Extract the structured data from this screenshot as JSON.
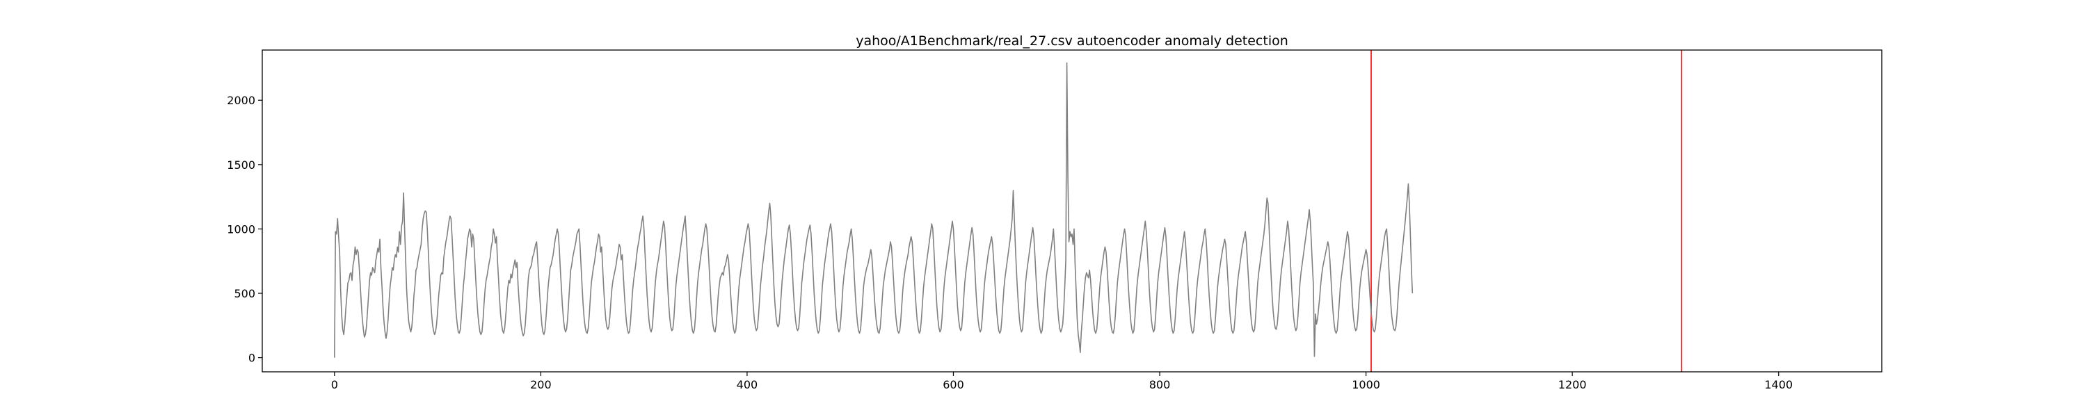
{
  "chart_data": {
    "type": "line",
    "title": "yahoo/A1Benchmark/real_27.csv autoencoder anomaly detection",
    "xlabel": "",
    "ylabel": "",
    "xlim": [
      -70,
      1500
    ],
    "ylim": [
      -110,
      2390
    ],
    "x_ticks": [
      0,
      200,
      400,
      600,
      800,
      1000,
      1200,
      1400
    ],
    "y_ticks": [
      0,
      500,
      1000,
      1500,
      2000
    ],
    "grid": false,
    "series": [
      {
        "color": "#808080",
        "values": [
          0,
          980,
          960,
          1080,
          940,
          820,
          520,
          330,
          220,
          180,
          260,
          380,
          480,
          580,
          600,
          650,
          660,
          600,
          720,
          760,
          860,
          800,
          840,
          820,
          700,
          560,
          420,
          300,
          220,
          160,
          180,
          240,
          360,
          480,
          600,
          660,
          640,
          700,
          680,
          660,
          750,
          800,
          850,
          820,
          920,
          700,
          560,
          400,
          280,
          200,
          150,
          200,
          300,
          440,
          560,
          620,
          700,
          680,
          760,
          800,
          780,
          860,
          820,
          980,
          880,
          1020,
          1060,
          1280,
          1000,
          760,
          520,
          380,
          280,
          230,
          200,
          240,
          340,
          480,
          560,
          680,
          700,
          760,
          800,
          840,
          880,
          1000,
          1080,
          1120,
          1140,
          1130,
          1000,
          820,
          640,
          480,
          360,
          260,
          210,
          180,
          200,
          260,
          360,
          480,
          560,
          640,
          660,
          650,
          780,
          840,
          900,
          940,
          1000,
          1060,
          1100,
          1080,
          940,
          780,
          620,
          460,
          340,
          260,
          200,
          190,
          220,
          320,
          440,
          560,
          640,
          740,
          820,
          920,
          960,
          1000,
          980,
          860,
          960,
          920,
          760,
          600,
          460,
          340,
          260,
          200,
          180,
          200,
          290,
          420,
          530,
          600,
          640,
          690,
          740,
          780,
          860,
          900,
          1000,
          960,
          890,
          940,
          760,
          620,
          460,
          340,
          260,
          210,
          190,
          230,
          320,
          430,
          540,
          600,
          580,
          650,
          620,
          680,
          720,
          760,
          700,
          740,
          560,
          440,
          330,
          250,
          200,
          170,
          190,
          260,
          380,
          500,
          620,
          680,
          700,
          720,
          780,
          800,
          840,
          880,
          900,
          760,
          620,
          480,
          360,
          260,
          200,
          180,
          210,
          300,
          420,
          540,
          620,
          700,
          720,
          760,
          800,
          860,
          920,
          960,
          1000,
          960,
          840,
          680,
          540,
          400,
          300,
          230,
          200,
          220,
          300,
          430,
          560,
          680,
          720,
          780,
          820,
          860,
          900,
          960,
          980,
          1000,
          880,
          720,
          560,
          420,
          310,
          240,
          200,
          190,
          230,
          330,
          460,
          580,
          640,
          700,
          740,
          800,
          860,
          900,
          960,
          940,
          820,
          860,
          700,
          540,
          400,
          300,
          240,
          220,
          240,
          320,
          440,
          540,
          600,
          640,
          680,
          720,
          780,
          820,
          880,
          860,
          760,
          800,
          640,
          500,
          380,
          280,
          220,
          190,
          200,
          280,
          400,
          520,
          600,
          660,
          720,
          800,
          860,
          900,
          960,
          1000,
          1060,
          1100,
          1000,
          820,
          660,
          500,
          380,
          280,
          220,
          200,
          230,
          330,
          460,
          580,
          660,
          720,
          760,
          820,
          880,
          940,
          1000,
          1060,
          1020,
          880,
          720,
          560,
          420,
          310,
          240,
          210,
          220,
          300,
          430,
          560,
          640,
          700,
          760,
          820,
          880,
          940,
          1000,
          1050,
          1100,
          960,
          800,
          640,
          480,
          360,
          270,
          210,
          190,
          220,
          320,
          460,
          580,
          660,
          720,
          780,
          840,
          880,
          940,
          1000,
          1040,
          1000,
          880,
          740,
          580,
          440,
          320,
          250,
          210,
          200,
          250,
          360,
          480,
          560,
          620,
          640,
          660,
          640,
          700,
          720,
          760,
          800,
          760,
          640,
          500,
          380,
          280,
          220,
          190,
          210,
          300,
          420,
          540,
          620,
          680,
          740,
          800,
          860,
          900,
          960,
          1000,
          1040,
          1000,
          860,
          700,
          540,
          400,
          300,
          240,
          210,
          230,
          320,
          440,
          560,
          640,
          720,
          780,
          860,
          920,
          980,
          1060,
          1140,
          1200,
          1100,
          920,
          740,
          560,
          420,
          320,
          260,
          240,
          260,
          360,
          480,
          600,
          680,
          760,
          820,
          880,
          940,
          1000,
          1030,
          960,
          820,
          660,
          500,
          380,
          290,
          230,
          210,
          230,
          320,
          450,
          580,
          660,
          740,
          800,
          860,
          920,
          960,
          1000,
          1030,
          960,
          820,
          660,
          500,
          380,
          280,
          220,
          190,
          210,
          300,
          430,
          560,
          640,
          720,
          780,
          840,
          900,
          960,
          1000,
          1040,
          980,
          840,
          680,
          520,
          390,
          290,
          230,
          200,
          220,
          310,
          430,
          560,
          640,
          700,
          760,
          820,
          860,
          900,
          960,
          1000,
          920,
          780,
          620,
          480,
          360,
          270,
          210,
          190,
          220,
          320,
          440,
          560,
          620,
          660,
          700,
          720,
          760,
          800,
          840,
          780,
          660,
          520,
          400,
          300,
          240,
          200,
          190,
          230,
          330,
          450,
          560,
          620,
          680,
          720,
          760,
          800,
          840,
          900,
          860,
          740,
          600,
          460,
          340,
          260,
          210,
          190,
          210,
          290,
          410,
          530,
          610,
          670,
          720,
          760,
          800,
          860,
          900,
          940,
          900,
          780,
          640,
          500,
          380,
          280,
          220,
          190,
          210,
          300,
          420,
          540,
          620,
          680,
          740,
          800,
          860,
          920,
          980,
          1040,
          1000,
          860,
          700,
          540,
          400,
          300,
          230,
          200,
          220,
          310,
          440,
          560,
          640,
          700,
          760,
          820,
          880,
          940,
          1000,
          1060,
          1000,
          860,
          700,
          540,
          400,
          300,
          240,
          210,
          230,
          330,
          460,
          580,
          660,
          720,
          780,
          840,
          900,
          960,
          1010,
          960,
          820,
          660,
          500,
          380,
          290,
          230,
          200,
          220,
          310,
          440,
          560,
          640,
          700,
          760,
          820,
          860,
          900,
          940,
          880,
          760,
          620,
          480,
          360,
          270,
          210,
          190,
          210,
          300,
          420,
          540,
          620,
          680,
          740,
          800,
          860,
          920,
          1000,
          1080,
          1300,
          1100,
          880,
          700,
          540,
          410,
          300,
          230,
          200,
          220,
          320,
          450,
          580,
          660,
          720,
          780,
          840,
          900,
          960,
          1010,
          940,
          800,
          640,
          500,
          380,
          280,
          220,
          190,
          210,
          300,
          420,
          540,
          620,
          680,
          720,
          760,
          800,
          860,
          920,
          1000,
          860,
          700,
          540,
          400,
          300,
          230,
          200,
          220,
          260,
          380,
          560,
          760,
          2290,
          1400,
          900,
          980,
          940,
          960,
          880,
          1000,
          720,
          520,
          300,
          180,
          120,
          40,
          200,
          300,
          420,
          540,
          620,
          660,
          640,
          620,
          680,
          600,
          480,
          360,
          270,
          210,
          190,
          220,
          320,
          440,
          560,
          640,
          700,
          760,
          820,
          860,
          820,
          700,
          560,
          420,
          310,
          240,
          200,
          190,
          230,
          330,
          460,
          580,
          660,
          720,
          780,
          840,
          900,
          960,
          1000,
          940,
          800,
          640,
          500,
          380,
          280,
          220,
          190,
          210,
          310,
          440,
          560,
          640,
          700,
          760,
          820,
          880,
          940,
          1000,
          1060,
          980,
          840,
          680,
          520,
          390,
          290,
          230,
          200,
          220,
          320,
          450,
          580,
          660,
          720,
          780,
          840,
          900,
          960,
          1010,
          940,
          800,
          640,
          500,
          380,
          280,
          220,
          190,
          210,
          300,
          420,
          540,
          620,
          680,
          740,
          800,
          860,
          920,
          980,
          900,
          760,
          620,
          480,
          360,
          270,
          210,
          190,
          210,
          300,
          420,
          540,
          620,
          680,
          740,
          800,
          860,
          900,
          960,
          1000,
          920,
          780,
          620,
          480,
          360,
          270,
          210,
          190,
          210,
          300,
          420,
          540,
          620,
          680,
          740,
          790,
          840,
          880,
          920,
          880,
          760,
          620,
          480,
          360,
          270,
          210,
          190,
          210,
          300,
          420,
          540,
          620,
          680,
          740,
          800,
          860,
          900,
          940,
          980,
          900,
          760,
          620,
          480,
          360,
          270,
          220,
          200,
          220,
          320,
          450,
          580,
          660,
          720,
          780,
          840,
          900,
          960,
          1040,
          1140,
          1240,
          1200,
          1020,
          820,
          640,
          480,
          360,
          280,
          230,
          220,
          260,
          360,
          480,
          600,
          680,
          740,
          800,
          860,
          920,
          980,
          1060,
          1000,
          860,
          700,
          540,
          400,
          300,
          240,
          210,
          230,
          320,
          450,
          580,
          660,
          720,
          780,
          840,
          900,
          960,
          1020,
          1080,
          1150,
          1060,
          900,
          720,
          560,
          10,
          340,
          260,
          300,
          380,
          460,
          560,
          640,
          700,
          740,
          780,
          820,
          860,
          900,
          860,
          760,
          620,
          480,
          360,
          270,
          210,
          190,
          210,
          300,
          420,
          540,
          620,
          680,
          740,
          800,
          860,
          920,
          980,
          940,
          820,
          680,
          540,
          400,
          300,
          240,
          210,
          220,
          300,
          420,
          540,
          620,
          680,
          720,
          760,
          800,
          840,
          800,
          700,
          580,
          460,
          350,
          270,
          220,
          200,
          220,
          310,
          430,
          550,
          640,
          700,
          760,
          820,
          880,
          940,
          980,
          1000,
          880,
          720,
          560,
          420,
          320,
          260,
          220,
          210,
          240,
          330,
          450,
          570,
          660,
          740,
          820,
          900,
          980,
          1060,
          1150,
          1240,
          1350,
          1200,
          960,
          700,
          500
        ]
      }
    ],
    "anomalies": [
      1005,
      1306
    ],
    "anomaly_color": "#ff0000",
    "line_color": "#808080"
  }
}
